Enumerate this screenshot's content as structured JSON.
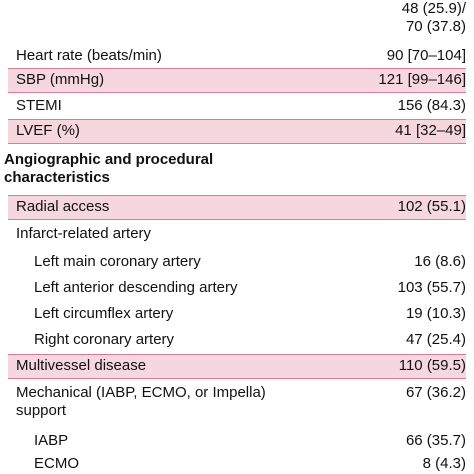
{
  "rows": [
    {
      "label": "",
      "value_line1": "48 (25.9)/",
      "value_line2": "70 (37.8)"
    },
    {
      "label": "Heart rate (beats/min)",
      "value": "90 [70–104]"
    },
    {
      "label": "SBP (mmHg)",
      "value": "121 [99–146]"
    },
    {
      "label": "STEMI",
      "value": "156 (84.3)"
    },
    {
      "label": "LVEF (%)",
      "value": "41 [32–49]"
    },
    {
      "label_line1": "Angiographic and procedural",
      "label_line2": "characteristics"
    },
    {
      "label": "Radial access",
      "value": "102 (55.1)"
    },
    {
      "label": "Infarct-related artery"
    },
    {
      "label": "Left main coronary artery",
      "value": "16 (8.6)"
    },
    {
      "label": "Left anterior descending artery",
      "value": "103 (55.7)"
    },
    {
      "label": "Left circumflex artery",
      "value": "19 (10.3)"
    },
    {
      "label": "Right coronary artery",
      "value": "47 (25.4)"
    },
    {
      "label": "Multivessel disease",
      "value": "110 (59.5)"
    },
    {
      "label_line1": "Mechanical (IABP, ECMO, or Impella)",
      "label_line2": "support",
      "value": "67 (36.2)"
    },
    {
      "label": "IABP",
      "value": "66 (35.7)"
    },
    {
      "label": "ECMO",
      "value": "8 (4.3)"
    }
  ]
}
